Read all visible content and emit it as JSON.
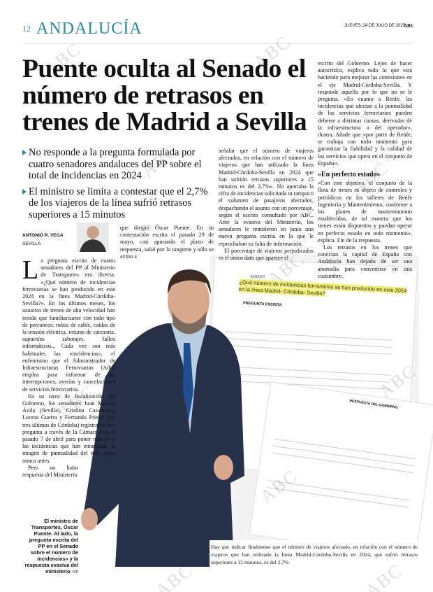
{
  "header": {
    "page_number": "12",
    "section": "ANDALUCÍA",
    "date": "JUEVES, 24 DE JULIO DE 2025",
    "brand": "ABC"
  },
  "headline": "Puente oculta al Senado el número de retrasos en trenes de Madrid a Sevilla",
  "bullets": [
    "No responde a la pregunta formulada por cuatro senadores andaluces del PP sobre el total de incidencias en 2024",
    "El ministro se limita a contestar que el 2,7% de los viajeros de la línea sufrió retrasos superiores a 15 minutos"
  ],
  "byline": {
    "author": "ANTONIO R. VEGA",
    "location": "SEVILLA"
  },
  "column_left": [
    "La pregunta escrita de cuatro senadores del PP al Ministerio de Transportes era directa. «¿Qué número de incidencias ferroviarias se han producido en este 2024 en la línea Madrid-Córdoba-Sevilla?». En los últimos meses, los usuarios de trenes de alta velocidad han tenido que familiarizarse con todo tipo de percances: robos de cable, caídas de la tensión eléctrica, roturas de catenaria, supuestos sabotajes, fallos informáticos... Cada vez son más habituales las «incidencias», el eufemismo que el Administrador de Infraestructuras Ferroviarias (Adif) emplea para informar de las interrupciones, averías y cancelaciones de servicios ferroviarios.",
    "En su tarea de fiscalización del Gobierno, los senadores Juan Manuel Ávila (Sevilla), Cristina Casanueva, Lorena Guerra y Fernando Priego (los tres últimos de Córdoba) registraron una pregunta a través de la Cámara Alta el pasado 7 de abril para poner número a las incidencias que han enturbiado la imagen de puntualidad del tren como nunca antes.",
    "Pero no hubo respuesta del Ministerio"
  ],
  "column_middle": "que dirigió Óscar Puente. En su contestación escrita el pasado 29 de mayo, casi apurando el plazo de respuesta, salió por la tangente y sólo se avino a",
  "column_second": [
    "señalar que el número de viajeros afectados, en relación con el número de viajeros que han utilizado la línea Madrid-Córdoba-Sevilla en 2024 que han sufrido retrasos superiores a 15 minutos es del 2,7%». No aportaba la cifra de incidencias solicitada ni tampoco el volumen de pasajeros afectados, despachando el asunto con un porcentaje, según el escrito consultado por ABC. Ante la evasiva del Ministerio, los senadores le remitieron en junio una nueva pregunta escrita en la que le reprochaban su falta de información.",
    "El porcentaje de viajeros perjudicados es el único dato que aparece el"
  ],
  "column_third": {
    "paragraphs": [
      "escrito del Gobierno. Lejos de hacer autocrítica, explica todo lo que está haciendo para mejorar las conexiones en el eje Madrid-Córdoba-Sevilla. Y responde aquello por lo que no se le pregunta. «En cuanto a Renfe, las incidencias que afectan a la puntualidad de los servicios ferroviarios pueden deberse a distintas causas, derivadas de la infraestructura o del operador», ilustra. Añade que «por parte de Renfe, se trabaja con todo momento para garantizar la fiabilidad y la calidad de los servicios que opera en el conjunto de España»."
    ],
    "subhead": "«En perfecto estado»",
    "paragraphs_after": [
      "«Con este objetivo, el conjunto de la flota de trenes es objeto de controles y periódicos en los talleres de Renfe Ingeniería y Mantenimiento, conforme a los planes de mantenimiento establecidos, de tal manera que los trenes están dispuestos y puedan operar en perfecto estado en todo momento», explica. Fin de la respuesta.",
      "Los retrasos en los trenes que conectan la capital de España con Andalucía han dejado de ser una anomalía para convertirse en una costumbre."
    ]
  },
  "caption": {
    "text": "El ministro de Transportes, Óscar Puente. Al lado, la pregunta escrita del PP en el Senado sobre el número de incidencias» y la respuesta evasiva del ministerio",
    "credit": "/ EP"
  },
  "documents": {
    "question": "¿Qué número de incidencias ferroviarias se han producido en este 2024 en la línea Madrid- Córdoba- Sevilla?",
    "question_heading": "PREGUNTA ESCRITA",
    "senate": "SENADO",
    "answer_heading": "RESPUESTA DEL GOBIERNO",
    "answer": "Hay que indicar finalmente que el número de viajeros afectado, en relación con el número de viajeros que han utilizado la línea Madrid-Córdoba-Sevilla en 2024, que sufrió retrasos superiores a 15 minutos, es del 2,7%"
  },
  "watermark": "ABC"
}
